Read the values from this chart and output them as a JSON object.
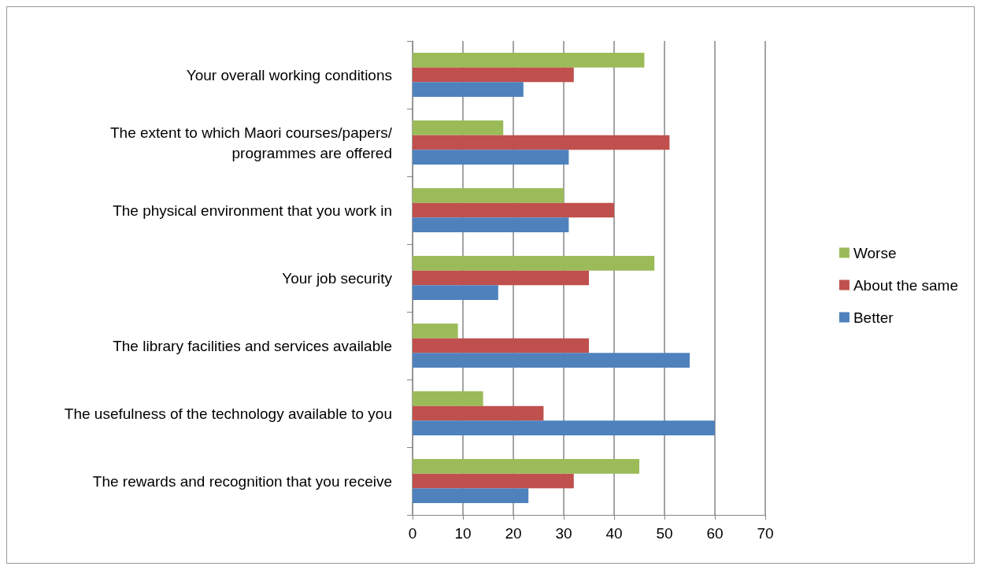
{
  "chart_data": {
    "type": "bar",
    "orientation": "horizontal",
    "categories": [
      "Your overall working conditions",
      "The extent to which Maori courses/papers/programmes are offered",
      "The physical environment that you work in",
      "Your job security",
      "The library facilities and services available",
      "The usefulness of the technology available to you",
      "The rewards and recognition that you receive"
    ],
    "series": [
      {
        "name": "Worse",
        "color": "#9bbb59",
        "values": [
          46,
          18,
          30,
          48,
          9,
          14,
          45
        ]
      },
      {
        "name": "About the same",
        "color": "#c0504d",
        "values": [
          32,
          51,
          40,
          35,
          35,
          26,
          32
        ]
      },
      {
        "name": "Better",
        "color": "#4f81bd",
        "values": [
          22,
          31,
          31,
          17,
          55,
          60,
          23
        ]
      }
    ],
    "xlim": [
      0,
      70
    ],
    "xticks": [
      0,
      10,
      20,
      30,
      40,
      50,
      60,
      70
    ],
    "grid": "x",
    "legend": "right"
  }
}
